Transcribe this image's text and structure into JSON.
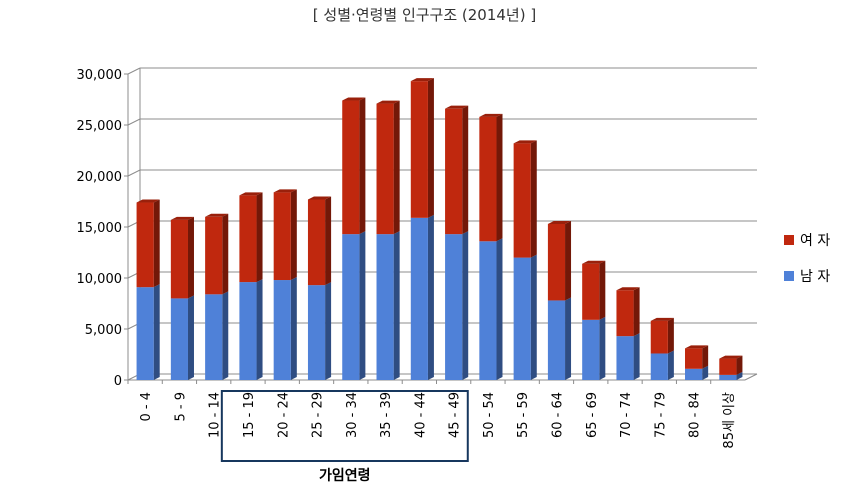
{
  "chart_data": {
    "type": "bar",
    "stacked": true,
    "title": "[ 성별·연령별 인구구조 (2014년) ]",
    "categories": [
      "0 - 4",
      "5 - 9",
      "10 - 14",
      "15 - 19",
      "20 - 24",
      "25 - 29",
      "30 - 34",
      "35 - 39",
      "40 - 44",
      "45 - 49",
      "50 - 54",
      "55 - 59",
      "60 - 64",
      "65 - 69",
      "70 - 74",
      "75 - 79",
      "80 - 84",
      "85세 이상"
    ],
    "series": [
      {
        "name": "남 자",
        "color": "#4f81d8",
        "values": [
          9100,
          8000,
          8400,
          9600,
          9800,
          9300,
          14300,
          14300,
          15900,
          14300,
          13600,
          12000,
          7800,
          5900,
          4300,
          2600,
          1100,
          500
        ]
      },
      {
        "name": "여 자",
        "color": "#c0280e",
        "values": [
          8300,
          7700,
          7600,
          8500,
          8600,
          8400,
          13100,
          12800,
          13400,
          12300,
          12200,
          11200,
          7500,
          5500,
          4500,
          3200,
          2000,
          1600
        ]
      }
    ],
    "yticks": [
      "0",
      "5,000",
      "10,000",
      "15,000",
      "20,000",
      "25,000",
      "30,000"
    ],
    "ylim": [
      0,
      30000
    ],
    "grid": true,
    "legend_position": "right",
    "highlight_group": {
      "label": "가임연령",
      "from": "15 - 19",
      "to": "45 - 49"
    }
  }
}
